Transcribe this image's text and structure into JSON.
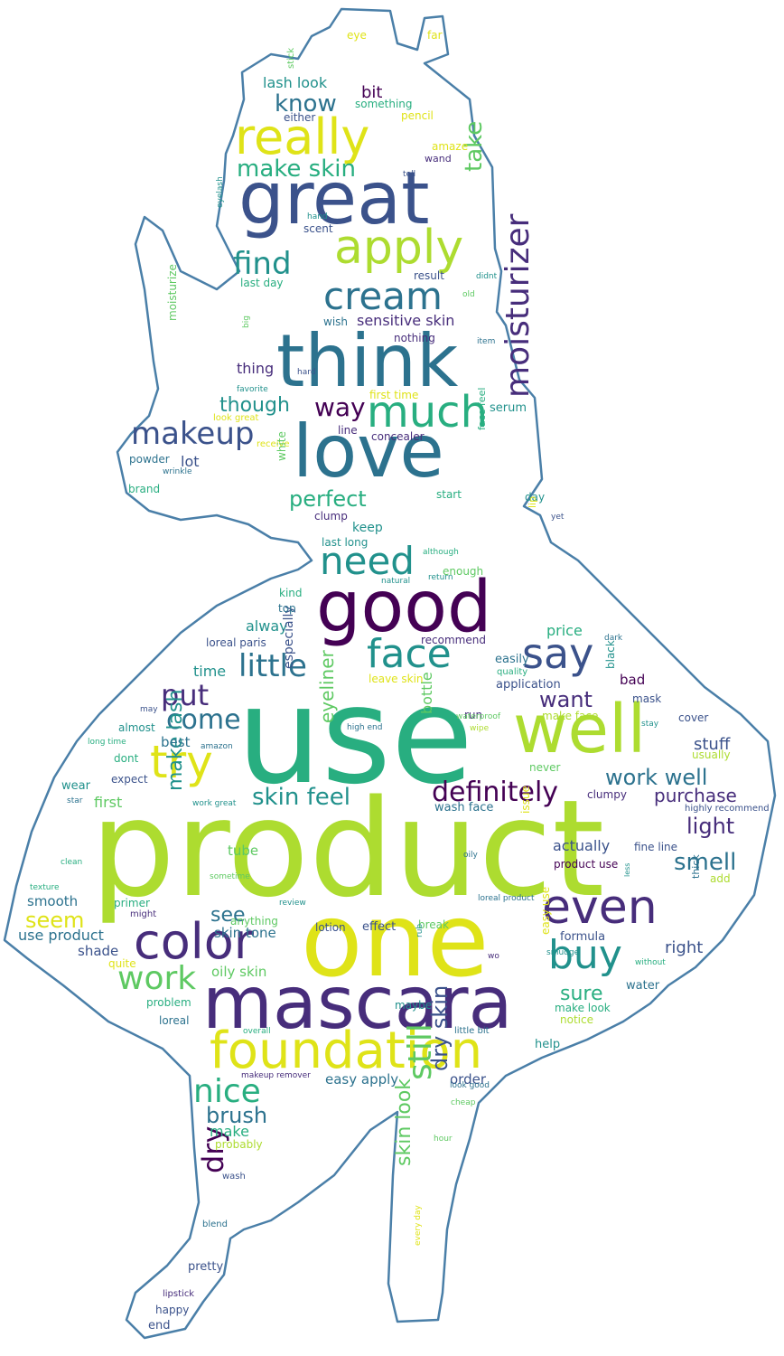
{
  "colors": {
    "outline": "#4a7fa8",
    "palette": {
      "p0": "#440154",
      "p1": "#472d7b",
      "p2": "#3b528b",
      "p3": "#2c728e",
      "p4": "#21918c",
      "p5": "#28ae80",
      "p6": "#5ec962",
      "p7": "#addc30",
      "p8": "#dfe318"
    }
  },
  "words": [
    {
      "t": "product",
      "c": "p7"
    },
    {
      "t": "use",
      "c": "p5"
    },
    {
      "t": "one",
      "c": "p8"
    },
    {
      "t": "mascara",
      "c": "p1"
    },
    {
      "t": "good",
      "c": "p0"
    },
    {
      "t": "great",
      "c": "p2"
    },
    {
      "t": "love",
      "c": "p3"
    },
    {
      "t": "think",
      "c": "p3"
    },
    {
      "t": "well",
      "c": "p7"
    },
    {
      "t": "foundation",
      "c": "p8"
    },
    {
      "t": "color",
      "c": "p1"
    },
    {
      "t": "really",
      "c": "p8"
    },
    {
      "t": "apply",
      "c": "p7"
    },
    {
      "t": "even",
      "c": "p1"
    },
    {
      "t": "buy",
      "c": "p4"
    },
    {
      "t": "much",
      "c": "p5"
    },
    {
      "t": "face",
      "c": "p4"
    },
    {
      "t": "say",
      "c": "p2"
    },
    {
      "t": "cream",
      "c": "p3"
    },
    {
      "t": "need",
      "c": "p4"
    },
    {
      "t": "try",
      "c": "p8"
    },
    {
      "t": "moisturizer",
      "c": "p1"
    },
    {
      "t": "work",
      "c": "p6"
    },
    {
      "t": "nice",
      "c": "p5"
    },
    {
      "t": "still",
      "c": "p6"
    },
    {
      "t": "makeup",
      "c": "p2"
    },
    {
      "t": "little",
      "c": "p3"
    },
    {
      "t": "find",
      "c": "p4"
    },
    {
      "t": "put",
      "c": "p1"
    },
    {
      "t": "come",
      "c": "p3"
    },
    {
      "t": "definitely",
      "c": "p0"
    },
    {
      "t": "way",
      "c": "p0"
    },
    {
      "t": "perfect",
      "c": "p5"
    },
    {
      "t": "know",
      "c": "p3"
    },
    {
      "t": "take",
      "c": "p6"
    },
    {
      "t": "make skin",
      "c": "p5"
    },
    {
      "t": "skin feel",
      "c": "p4"
    },
    {
      "t": "work well",
      "c": "p3"
    },
    {
      "t": "want",
      "c": "p1"
    },
    {
      "t": "smell",
      "c": "p3"
    },
    {
      "t": "light",
      "c": "p1"
    },
    {
      "t": "dry",
      "c": "p0"
    },
    {
      "t": "dry skin",
      "c": "p2"
    },
    {
      "t": "brush",
      "c": "p3"
    },
    {
      "t": "seem",
      "c": "p8"
    },
    {
      "t": "sure",
      "c": "p5"
    },
    {
      "t": "purchase",
      "c": "p1"
    },
    {
      "t": "make lash",
      "c": "p4"
    },
    {
      "t": "eyeliner",
      "c": "p6"
    },
    {
      "t": "skin look",
      "c": "p6"
    },
    {
      "t": "see",
      "c": "p3"
    },
    {
      "t": "though",
      "c": "p4"
    },
    {
      "t": "lash look",
      "c": "p4"
    },
    {
      "t": "sensitive skin",
      "c": "p1"
    },
    {
      "t": "thing",
      "c": "p1"
    },
    {
      "t": "bottle",
      "c": "p6"
    },
    {
      "t": "right",
      "c": "p2"
    },
    {
      "t": "stuff",
      "c": "p2"
    },
    {
      "t": "bit",
      "c": "p0"
    },
    {
      "t": "keep",
      "c": "p4"
    },
    {
      "t": "actually",
      "c": "p2"
    },
    {
      "t": "shade",
      "c": "p2"
    },
    {
      "t": "time",
      "c": "p4"
    },
    {
      "t": "alway",
      "c": "p4"
    },
    {
      "t": "price",
      "c": "p5"
    },
    {
      "t": "make",
      "c": "p5"
    },
    {
      "t": "oily skin",
      "c": "p6"
    },
    {
      "t": "skin tone",
      "c": "p3"
    },
    {
      "t": "lot",
      "c": "p2"
    },
    {
      "t": "smooth",
      "c": "p3"
    },
    {
      "t": "use product",
      "c": "p3"
    },
    {
      "t": "first",
      "c": "p6"
    },
    {
      "t": "easy apply",
      "c": "p3"
    },
    {
      "t": "order",
      "c": "p2"
    },
    {
      "t": "best",
      "c": "p3"
    },
    {
      "t": "tube",
      "c": "p6"
    },
    {
      "t": "bad",
      "c": "p0"
    },
    {
      "t": "especially",
      "c": "p2"
    },
    {
      "t": "concealer",
      "c": "p1"
    },
    {
      "t": "line",
      "c": "p1"
    },
    {
      "t": "serum",
      "c": "p4"
    },
    {
      "t": "wear",
      "c": "p4"
    },
    {
      "t": "loreal paris",
      "c": "p2"
    },
    {
      "t": "pretty",
      "c": "p2"
    },
    {
      "t": "happy",
      "c": "p2"
    },
    {
      "t": "end",
      "c": "p2"
    },
    {
      "t": "lipstick",
      "c": "p1"
    },
    {
      "t": "blend",
      "c": "p3"
    },
    {
      "t": "wash",
      "c": "p2"
    },
    {
      "t": "probably",
      "c": "p7"
    },
    {
      "t": "help",
      "c": "p4"
    },
    {
      "t": "maybe",
      "c": "p4"
    },
    {
      "t": "water",
      "c": "p3"
    },
    {
      "t": "formula",
      "c": "p2"
    },
    {
      "t": "make look",
      "c": "p5"
    },
    {
      "t": "notice",
      "c": "p7"
    },
    {
      "t": "loreal",
      "c": "p3"
    },
    {
      "t": "problem",
      "c": "p5"
    },
    {
      "t": "quite",
      "c": "p8"
    },
    {
      "t": "effect",
      "c": "p2"
    },
    {
      "t": "lotion",
      "c": "p2"
    },
    {
      "t": "break",
      "c": "p6"
    },
    {
      "t": "anything",
      "c": "p6"
    },
    {
      "t": "primer",
      "c": "p5"
    },
    {
      "t": "might",
      "c": "p1"
    },
    {
      "t": "product use",
      "c": "p0"
    },
    {
      "t": "fine line",
      "c": "p2"
    },
    {
      "t": "add",
      "c": "p7"
    },
    {
      "t": "thick",
      "c": "p3"
    },
    {
      "t": "wash face",
      "c": "p3"
    },
    {
      "t": "clumpy",
      "c": "p1"
    },
    {
      "t": "highly recommend",
      "c": "p2"
    },
    {
      "t": "mask",
      "c": "p2"
    },
    {
      "t": "stay",
      "c": "p4"
    },
    {
      "t": "cover",
      "c": "p2"
    },
    {
      "t": "usually",
      "c": "p7"
    },
    {
      "t": "application",
      "c": "p2"
    },
    {
      "t": "easily",
      "c": "p3"
    },
    {
      "t": "quality",
      "c": "p5"
    },
    {
      "t": "black",
      "c": "p4"
    },
    {
      "t": "make face",
      "c": "p7"
    },
    {
      "t": "dark",
      "c": "p3"
    },
    {
      "t": "run",
      "c": "p1"
    },
    {
      "t": "recommend",
      "c": "p1"
    },
    {
      "t": "leave skin",
      "c": "p8"
    },
    {
      "t": "waterproof",
      "c": "p6"
    },
    {
      "t": "wipe",
      "c": "p7"
    },
    {
      "t": "high end",
      "c": "p3"
    },
    {
      "t": "never",
      "c": "p6"
    },
    {
      "t": "issue",
      "c": "p8"
    },
    {
      "t": "oily",
      "c": "p3"
    },
    {
      "t": "loreal product",
      "c": "p3"
    },
    {
      "t": "review",
      "c": "p4"
    },
    {
      "t": "rub",
      "c": "p4"
    },
    {
      "t": "wo",
      "c": "p1"
    },
    {
      "t": "easy use",
      "c": "p8"
    },
    {
      "t": "smudge",
      "c": "p4"
    },
    {
      "t": "without",
      "c": "p5"
    },
    {
      "t": "little bit",
      "c": "p3"
    },
    {
      "t": "look good",
      "c": "p3"
    },
    {
      "t": "cheap",
      "c": "p6"
    },
    {
      "t": "hour",
      "c": "p6"
    },
    {
      "t": "every day",
      "c": "p8"
    },
    {
      "t": "less",
      "c": "p4"
    },
    {
      "t": "overall",
      "c": "p5"
    },
    {
      "t": "makeup remover",
      "c": "p1"
    },
    {
      "t": "top",
      "c": "p3"
    },
    {
      "t": "kind",
      "c": "p5"
    },
    {
      "t": "natural",
      "c": "p4"
    },
    {
      "t": "return",
      "c": "p4"
    },
    {
      "t": "enough",
      "c": "p6"
    },
    {
      "t": "although",
      "c": "p5"
    },
    {
      "t": "last long",
      "c": "p4"
    },
    {
      "t": "clump",
      "c": "p1"
    },
    {
      "t": "start",
      "c": "p5"
    },
    {
      "t": "day",
      "c": "p4"
    },
    {
      "t": "lip",
      "c": "p8"
    },
    {
      "t": "yet",
      "c": "p2"
    },
    {
      "t": "face feel",
      "c": "p5"
    },
    {
      "t": "first time",
      "c": "p8"
    },
    {
      "t": "hard",
      "c": "p2"
    },
    {
      "t": "nothing",
      "c": "p1"
    },
    {
      "t": "item",
      "c": "p3"
    },
    {
      "t": "wish",
      "c": "p3"
    },
    {
      "t": "old",
      "c": "p6"
    },
    {
      "t": "didnt",
      "c": "p4"
    },
    {
      "t": "result",
      "c": "p2"
    },
    {
      "t": "last day",
      "c": "p5"
    },
    {
      "t": "scent",
      "c": "p2"
    },
    {
      "t": "hand",
      "c": "p4"
    },
    {
      "t": "eyelash",
      "c": "p4"
    },
    {
      "t": "tell",
      "c": "p2"
    },
    {
      "t": "wand",
      "c": "p1"
    },
    {
      "t": "amaze",
      "c": "p8"
    },
    {
      "t": "pencil",
      "c": "p8"
    },
    {
      "t": "either",
      "c": "p2"
    },
    {
      "t": "something",
      "c": "p5"
    },
    {
      "t": "stick",
      "c": "p6"
    },
    {
      "t": "eye",
      "c": "p8"
    },
    {
      "t": "far",
      "c": "p8"
    },
    {
      "t": "moisturize",
      "c": "p6"
    },
    {
      "t": "big",
      "c": "p6"
    },
    {
      "t": "favorite",
      "c": "p4"
    },
    {
      "t": "look great",
      "c": "p8"
    },
    {
      "t": "receive",
      "c": "p8"
    },
    {
      "t": "powder",
      "c": "p3"
    },
    {
      "t": "wrinkle",
      "c": "p3"
    },
    {
      "t": "brand",
      "c": "p5"
    },
    {
      "t": "white",
      "c": "p6"
    },
    {
      "t": "may",
      "c": "p2"
    },
    {
      "t": "almost",
      "c": "p4"
    },
    {
      "t": "amazon",
      "c": "p3"
    },
    {
      "t": "dont",
      "c": "p5"
    },
    {
      "t": "expect",
      "c": "p2"
    },
    {
      "t": "long time",
      "c": "p5"
    },
    {
      "t": "star",
      "c": "p3"
    },
    {
      "t": "work great",
      "c": "p4"
    },
    {
      "t": "clean",
      "c": "p5"
    },
    {
      "t": "sometime",
      "c": "p6"
    },
    {
      "t": "texture",
      "c": "p5"
    }
  ]
}
